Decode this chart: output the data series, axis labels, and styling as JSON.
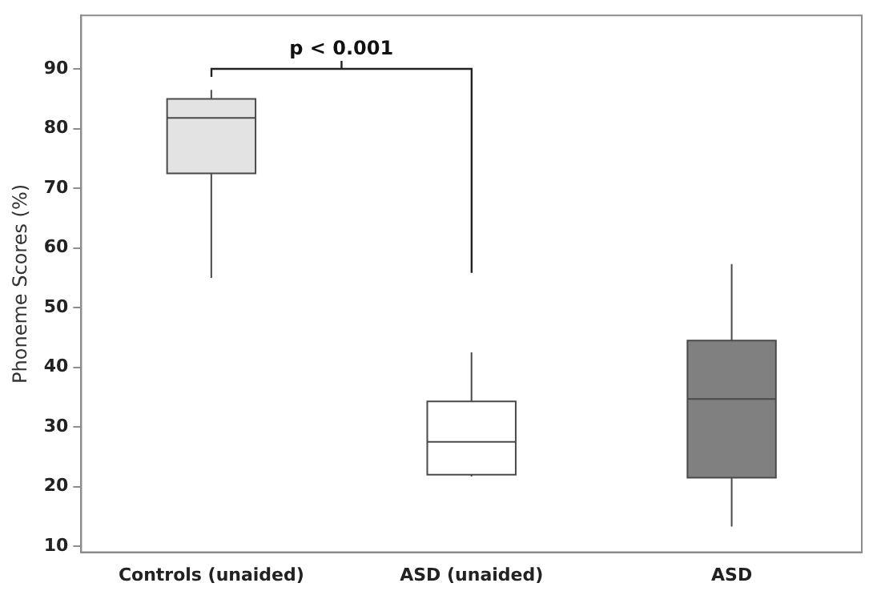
{
  "chart_data": {
    "type": "box",
    "ylabel": "Phoneme Scores (%)",
    "categories": [
      "Controls (unaided)",
      "ASD (unaided)",
      "ASD"
    ],
    "colors": [
      "#e3e3e3",
      "#ffffff",
      "#808080"
    ],
    "boxes": [
      {
        "low": 55,
        "q1": 72.5,
        "median": 81.8,
        "q3": 85,
        "high": 86.5
      },
      {
        "low": 21.7,
        "q1": 22,
        "median": 27.5,
        "q3": 34.3,
        "high": 42.5
      },
      {
        "low": 13.3,
        "q1": 21.5,
        "median": 34.7,
        "q3": 44.5,
        "high": 57.3
      }
    ],
    "ylim": [
      9,
      99
    ],
    "yticks": [
      10,
      20,
      30,
      40,
      50,
      60,
      70,
      80,
      90
    ],
    "grid": false,
    "legend": false,
    "annotations": [
      "p < 0.001"
    ]
  }
}
